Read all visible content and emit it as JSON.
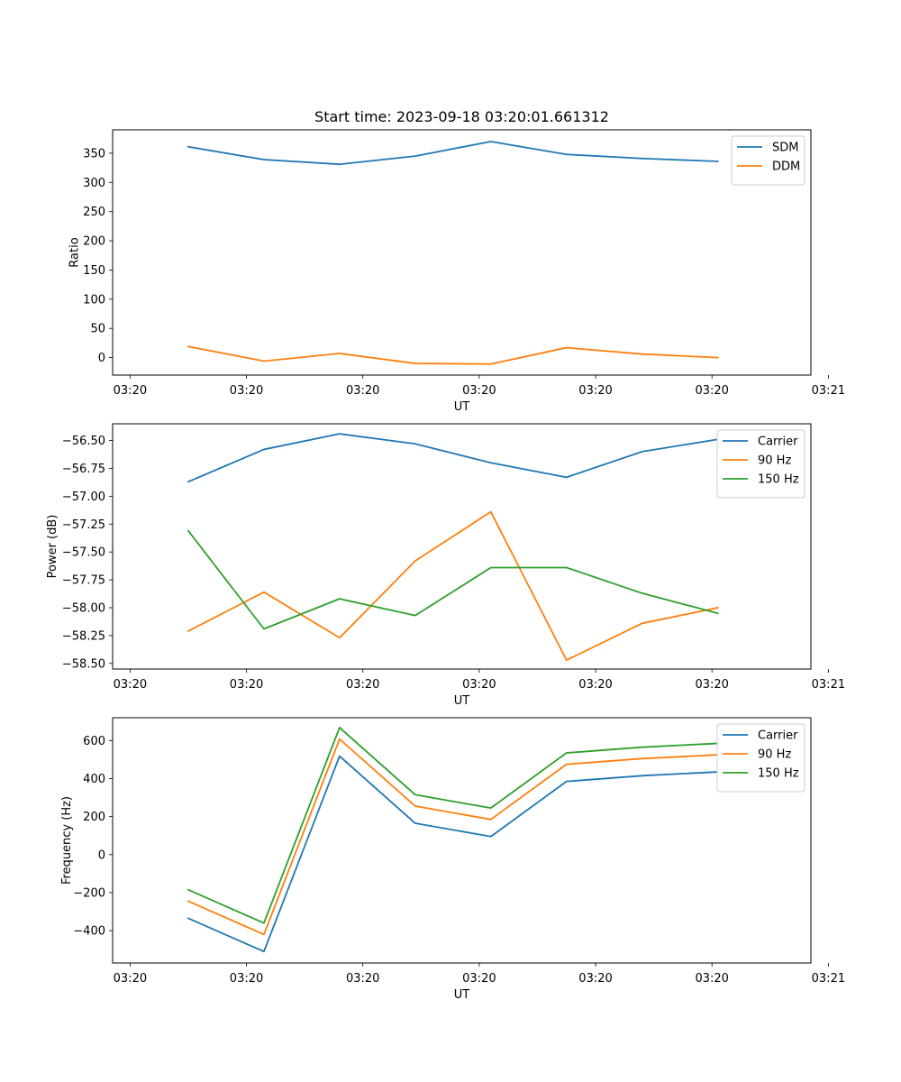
{
  "chart_data": [
    {
      "type": "line",
      "title": "Start time: 2023-09-18 03:20:01.661312",
      "xlabel": "UT",
      "ylabel": "Ratio",
      "xlim": [
        -0.5,
        5.5
      ],
      "ylim": [
        -30,
        390
      ],
      "x_ticks": [
        -0.35,
        0.65,
        1.65,
        2.65,
        3.65,
        4.65,
        5.65
      ],
      "x_tick_labels": [
        "03:20",
        "03:20",
        "03:20",
        "03:20",
        "03:20",
        "03:20",
        "03:21"
      ],
      "y_ticks": [
        0,
        50,
        100,
        150,
        200,
        250,
        300,
        350
      ],
      "y_tick_labels": [
        "0",
        "50",
        "100",
        "150",
        "200",
        "250",
        "300",
        "350"
      ],
      "x": [
        0.15,
        0.8,
        1.45,
        2.1,
        2.75,
        3.4,
        4.05,
        4.7
      ],
      "series": [
        {
          "name": "SDM",
          "color": "#1f77b4",
          "values": [
            361,
            339,
            331,
            345,
            370,
            348,
            341,
            336
          ]
        },
        {
          "name": "DDM",
          "color": "#ff7f0e",
          "values": [
            19,
            -6,
            7,
            -10,
            -11,
            17,
            6,
            0
          ]
        }
      ],
      "legend": "top-right"
    },
    {
      "type": "line",
      "title": "",
      "xlabel": "UT",
      "ylabel": "Power (dB)",
      "xlim": [
        -0.5,
        5.5
      ],
      "ylim": [
        -58.55,
        -56.35
      ],
      "x_ticks": [
        -0.35,
        0.65,
        1.65,
        2.65,
        3.65,
        4.65,
        5.65
      ],
      "x_tick_labels": [
        "03:20",
        "03:20",
        "03:20",
        "03:20",
        "03:20",
        "03:20",
        "03:21"
      ],
      "y_ticks": [
        -58.5,
        -58.25,
        -58.0,
        -57.75,
        -57.5,
        -57.25,
        -57.0,
        -56.75,
        -56.5
      ],
      "y_tick_labels": [
        "−58.50",
        "−58.25",
        "−58.00",
        "−57.75",
        "−57.50",
        "−57.25",
        "−57.00",
        "−56.75",
        "−56.50"
      ],
      "x": [
        0.15,
        0.8,
        1.45,
        2.1,
        2.75,
        3.4,
        4.05,
        4.7
      ],
      "series": [
        {
          "name": "Carrier",
          "color": "#1f77b4",
          "values": [
            -56.87,
            -56.58,
            -56.44,
            -56.53,
            -56.7,
            -56.83,
            -56.6,
            -56.49
          ]
        },
        {
          "name": "90 Hz",
          "color": "#ff7f0e",
          "values": [
            -58.21,
            -57.86,
            -58.27,
            -57.58,
            -57.14,
            -58.47,
            -58.14,
            -58.0
          ]
        },
        {
          "name": "150 Hz",
          "color": "#2ca02c",
          "values": [
            -57.31,
            -58.19,
            -57.92,
            -58.07,
            -57.64,
            -57.64,
            -57.87,
            -58.05
          ]
        }
      ],
      "legend": "top-right"
    },
    {
      "type": "line",
      "title": "",
      "xlabel": "UT",
      "ylabel": "Frequency (Hz)",
      "xlim": [
        -0.5,
        5.5
      ],
      "ylim": [
        -570,
        720
      ],
      "x_ticks": [
        -0.35,
        0.65,
        1.65,
        2.65,
        3.65,
        4.65,
        5.65
      ],
      "x_tick_labels": [
        "03:20",
        "03:20",
        "03:20",
        "03:20",
        "03:20",
        "03:20",
        "03:21"
      ],
      "y_ticks": [
        -400,
        -200,
        0,
        200,
        400,
        600
      ],
      "y_tick_labels": [
        "−400",
        "−200",
        "0",
        "200",
        "400",
        "600"
      ],
      "x": [
        0.15,
        0.8,
        1.45,
        2.1,
        2.75,
        3.4,
        4.05,
        4.7
      ],
      "series": [
        {
          "name": "Carrier",
          "color": "#1f77b4",
          "values": [
            -335,
            -510,
            518,
            165,
            95,
            385,
            415,
            435
          ]
        },
        {
          "name": "90 Hz",
          "color": "#ff7f0e",
          "values": [
            -245,
            -420,
            608,
            255,
            185,
            475,
            505,
            525
          ]
        },
        {
          "name": "150 Hz",
          "color": "#2ca02c",
          "values": [
            -185,
            -360,
            668,
            315,
            245,
            535,
            565,
            585
          ]
        }
      ],
      "legend": "top-right"
    }
  ]
}
